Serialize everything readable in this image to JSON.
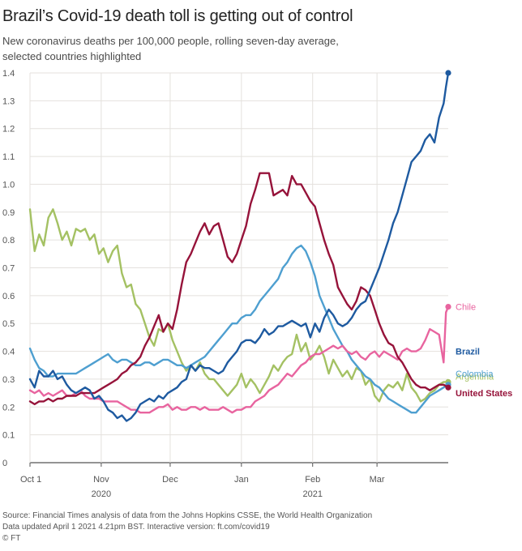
{
  "header": {
    "title": "Brazil’s Covid-19 death toll is getting out of control",
    "subtitle_lines": [
      "New coronavirus deaths per 100,000 people, rolling seven-day average,",
      "selected countries highlighted"
    ]
  },
  "footer": {
    "source": "Source: Financial Times analysis of data from the Johns Hopkins CSSE, the World Health Organization",
    "updated": "Data updated April 1 2021 4.21pm BST. Interactive version: ft.com/covid19",
    "credit": "© FT"
  },
  "chart_data": {
    "type": "line",
    "title": "Brazil’s Covid-19 death toll is getting out of control",
    "ylabel": "New coronavirus deaths per 100,000 people, rolling seven-day average",
    "xlabel": "",
    "ylim": [
      0,
      1.4
    ],
    "xlim": [
      0,
      182
    ],
    "yticks": [
      0,
      0.1,
      0.2,
      0.3,
      0.4,
      0.5,
      0.6,
      0.7,
      0.8,
      0.9,
      1.0,
      1.1,
      1.2,
      1.3,
      1.4
    ],
    "ytick_labels": [
      "0",
      "0.1",
      "0.2",
      "0.3",
      "0.4",
      "0.5",
      "0.6",
      "0.7",
      "0.8",
      "0.9",
      "1.0",
      "1.1",
      "1.2",
      "1.3",
      "1.4"
    ],
    "xticks": [
      {
        "day": 0,
        "label": "Oct 1"
      },
      {
        "day": 31,
        "label": "Nov",
        "year": "2020"
      },
      {
        "day": 61,
        "label": "Dec"
      },
      {
        "day": 92,
        "label": "Jan"
      },
      {
        "day": 123,
        "label": "Feb",
        "year": "2021"
      },
      {
        "day": 151,
        "label": "Mar"
      }
    ],
    "grid": true,
    "series": [
      {
        "name": "Argentina",
        "color": "#a4c163",
        "label_value": 0.29,
        "x": [
          0,
          2,
          4,
          6,
          8,
          10,
          12,
          14,
          16,
          18,
          20,
          22,
          24,
          26,
          28,
          30,
          32,
          34,
          36,
          38,
          40,
          42,
          44,
          46,
          48,
          50,
          52,
          54,
          56,
          58,
          60,
          62,
          64,
          66,
          68,
          70,
          72,
          74,
          76,
          78,
          80,
          82,
          84,
          86,
          88,
          90,
          92,
          94,
          96,
          98,
          100,
          102,
          104,
          106,
          108,
          110,
          112,
          114,
          116,
          118,
          120,
          122,
          124,
          126,
          128,
          130,
          132,
          134,
          136,
          138,
          140,
          142,
          144,
          146,
          148,
          150,
          152,
          154,
          156,
          158,
          160,
          162,
          164,
          166,
          168,
          170,
          172,
          174,
          176,
          178,
          180,
          182
        ],
        "values": [
          0.91,
          0.76,
          0.82,
          0.78,
          0.88,
          0.91,
          0.86,
          0.8,
          0.83,
          0.78,
          0.84,
          0.83,
          0.84,
          0.8,
          0.82,
          0.75,
          0.77,
          0.72,
          0.76,
          0.78,
          0.68,
          0.63,
          0.64,
          0.57,
          0.55,
          0.5,
          0.45,
          0.42,
          0.48,
          0.47,
          0.5,
          0.44,
          0.4,
          0.36,
          0.33,
          0.35,
          0.33,
          0.36,
          0.32,
          0.3,
          0.3,
          0.28,
          0.26,
          0.24,
          0.26,
          0.28,
          0.32,
          0.27,
          0.3,
          0.28,
          0.25,
          0.28,
          0.31,
          0.35,
          0.33,
          0.36,
          0.38,
          0.39,
          0.46,
          0.4,
          0.43,
          0.37,
          0.39,
          0.42,
          0.38,
          0.32,
          0.37,
          0.34,
          0.31,
          0.33,
          0.3,
          0.34,
          0.33,
          0.28,
          0.3,
          0.24,
          0.22,
          0.26,
          0.28,
          0.27,
          0.29,
          0.26,
          0.32,
          0.27,
          0.25,
          0.22,
          0.23,
          0.25,
          0.26,
          0.28,
          0.29,
          0.29
        ]
      },
      {
        "name": "Colombia",
        "color": "#4e9fd0",
        "label_value": 0.28,
        "x": [
          0,
          2,
          4,
          6,
          8,
          10,
          12,
          14,
          16,
          18,
          20,
          22,
          24,
          26,
          28,
          30,
          32,
          34,
          36,
          38,
          40,
          42,
          44,
          46,
          48,
          50,
          52,
          54,
          56,
          58,
          60,
          62,
          64,
          66,
          68,
          70,
          72,
          74,
          76,
          78,
          80,
          82,
          84,
          86,
          88,
          90,
          92,
          94,
          96,
          98,
          100,
          102,
          104,
          106,
          108,
          110,
          112,
          114,
          116,
          118,
          120,
          122,
          124,
          126,
          128,
          130,
          132,
          134,
          136,
          138,
          140,
          142,
          144,
          146,
          148,
          150,
          152,
          154,
          156,
          158,
          160,
          162,
          164,
          166,
          168,
          170,
          172,
          174,
          176,
          178,
          180,
          182
        ],
        "values": [
          0.41,
          0.37,
          0.34,
          0.33,
          0.31,
          0.31,
          0.32,
          0.32,
          0.32,
          0.32,
          0.32,
          0.33,
          0.34,
          0.35,
          0.36,
          0.37,
          0.38,
          0.39,
          0.37,
          0.36,
          0.37,
          0.37,
          0.36,
          0.35,
          0.35,
          0.36,
          0.36,
          0.35,
          0.36,
          0.37,
          0.37,
          0.36,
          0.35,
          0.35,
          0.34,
          0.35,
          0.36,
          0.37,
          0.38,
          0.4,
          0.42,
          0.44,
          0.46,
          0.48,
          0.5,
          0.5,
          0.52,
          0.53,
          0.53,
          0.55,
          0.58,
          0.6,
          0.62,
          0.64,
          0.66,
          0.7,
          0.72,
          0.75,
          0.77,
          0.78,
          0.76,
          0.72,
          0.67,
          0.6,
          0.56,
          0.52,
          0.48,
          0.45,
          0.42,
          0.4,
          0.37,
          0.35,
          0.33,
          0.31,
          0.3,
          0.28,
          0.27,
          0.25,
          0.23,
          0.22,
          0.21,
          0.2,
          0.19,
          0.18,
          0.18,
          0.2,
          0.22,
          0.24,
          0.25,
          0.26,
          0.27,
          0.28
        ]
      },
      {
        "name": "Chile",
        "color": "#e8649f",
        "label_value": 0.56,
        "x": [
          0,
          2,
          4,
          6,
          8,
          10,
          12,
          14,
          16,
          18,
          20,
          22,
          24,
          26,
          28,
          30,
          32,
          34,
          36,
          38,
          40,
          42,
          44,
          46,
          48,
          50,
          52,
          54,
          56,
          58,
          60,
          62,
          64,
          66,
          68,
          70,
          72,
          74,
          76,
          78,
          80,
          82,
          84,
          86,
          88,
          90,
          92,
          94,
          96,
          98,
          100,
          102,
          104,
          106,
          108,
          110,
          112,
          114,
          116,
          118,
          120,
          122,
          124,
          126,
          128,
          130,
          132,
          134,
          136,
          138,
          140,
          142,
          144,
          146,
          148,
          150,
          152,
          154,
          156,
          158,
          160,
          162,
          164,
          166,
          168,
          170,
          172,
          174,
          176,
          178,
          180,
          181,
          182
        ],
        "values": [
          0.26,
          0.25,
          0.26,
          0.24,
          0.25,
          0.24,
          0.25,
          0.26,
          0.24,
          0.24,
          0.25,
          0.26,
          0.24,
          0.23,
          0.23,
          0.23,
          0.22,
          0.22,
          0.22,
          0.22,
          0.21,
          0.2,
          0.19,
          0.19,
          0.18,
          0.18,
          0.18,
          0.19,
          0.2,
          0.2,
          0.21,
          0.19,
          0.2,
          0.19,
          0.19,
          0.2,
          0.2,
          0.19,
          0.2,
          0.19,
          0.19,
          0.19,
          0.2,
          0.19,
          0.18,
          0.19,
          0.19,
          0.2,
          0.2,
          0.22,
          0.23,
          0.24,
          0.26,
          0.27,
          0.28,
          0.3,
          0.32,
          0.31,
          0.33,
          0.35,
          0.36,
          0.38,
          0.39,
          0.39,
          0.4,
          0.41,
          0.42,
          0.41,
          0.42,
          0.4,
          0.39,
          0.4,
          0.38,
          0.37,
          0.39,
          0.4,
          0.38,
          0.4,
          0.39,
          0.38,
          0.37,
          0.4,
          0.41,
          0.4,
          0.4,
          0.41,
          0.44,
          0.48,
          0.47,
          0.46,
          0.36,
          0.54,
          0.56
        ]
      },
      {
        "name": "United States",
        "color": "#96133a",
        "label_value": 0.27,
        "x": [
          0,
          2,
          4,
          6,
          8,
          10,
          12,
          14,
          16,
          18,
          20,
          22,
          24,
          26,
          28,
          30,
          32,
          34,
          36,
          38,
          40,
          42,
          44,
          46,
          48,
          50,
          52,
          54,
          56,
          58,
          60,
          62,
          64,
          66,
          68,
          70,
          72,
          74,
          76,
          78,
          80,
          82,
          84,
          86,
          88,
          90,
          92,
          94,
          96,
          98,
          100,
          102,
          104,
          106,
          108,
          110,
          112,
          114,
          116,
          118,
          120,
          122,
          124,
          126,
          128,
          130,
          132,
          134,
          136,
          138,
          140,
          142,
          144,
          146,
          148,
          150,
          152,
          154,
          156,
          158,
          160,
          162,
          164,
          166,
          168,
          170,
          172,
          174,
          176,
          178,
          180,
          182
        ],
        "values": [
          0.22,
          0.21,
          0.22,
          0.22,
          0.23,
          0.22,
          0.23,
          0.23,
          0.24,
          0.24,
          0.24,
          0.25,
          0.25,
          0.25,
          0.25,
          0.26,
          0.27,
          0.28,
          0.29,
          0.3,
          0.32,
          0.33,
          0.35,
          0.36,
          0.38,
          0.42,
          0.45,
          0.49,
          0.53,
          0.47,
          0.5,
          0.48,
          0.55,
          0.64,
          0.72,
          0.75,
          0.79,
          0.83,
          0.86,
          0.82,
          0.85,
          0.86,
          0.8,
          0.74,
          0.72,
          0.75,
          0.8,
          0.85,
          0.93,
          0.98,
          1.04,
          1.04,
          1.04,
          0.96,
          0.97,
          0.98,
          0.96,
          1.03,
          1.0,
          1.0,
          0.97,
          0.94,
          0.92,
          0.86,
          0.8,
          0.75,
          0.71,
          0.63,
          0.6,
          0.57,
          0.55,
          0.58,
          0.63,
          0.62,
          0.6,
          0.55,
          0.5,
          0.46,
          0.43,
          0.42,
          0.38,
          0.36,
          0.33,
          0.3,
          0.28,
          0.27,
          0.27,
          0.26,
          0.27,
          0.28,
          0.28,
          0.27
        ]
      },
      {
        "name": "Brazil",
        "color": "#1e5aa0",
        "label_value": 1.4,
        "x": [
          0,
          2,
          4,
          6,
          8,
          10,
          12,
          14,
          16,
          18,
          20,
          22,
          24,
          26,
          28,
          30,
          32,
          34,
          36,
          38,
          40,
          42,
          44,
          46,
          48,
          50,
          52,
          54,
          56,
          58,
          60,
          62,
          64,
          66,
          68,
          70,
          72,
          74,
          76,
          78,
          80,
          82,
          84,
          86,
          88,
          90,
          92,
          94,
          96,
          98,
          100,
          102,
          104,
          106,
          108,
          110,
          112,
          114,
          116,
          118,
          120,
          122,
          124,
          126,
          128,
          130,
          132,
          134,
          136,
          138,
          140,
          142,
          144,
          146,
          148,
          150,
          152,
          154,
          156,
          158,
          160,
          162,
          164,
          166,
          168,
          170,
          172,
          174,
          176,
          178,
          180,
          181,
          182
        ],
        "values": [
          0.3,
          0.27,
          0.33,
          0.31,
          0.31,
          0.33,
          0.3,
          0.31,
          0.28,
          0.26,
          0.25,
          0.26,
          0.27,
          0.26,
          0.23,
          0.24,
          0.22,
          0.19,
          0.18,
          0.16,
          0.17,
          0.15,
          0.16,
          0.18,
          0.21,
          0.22,
          0.23,
          0.22,
          0.24,
          0.23,
          0.25,
          0.26,
          0.27,
          0.29,
          0.3,
          0.35,
          0.33,
          0.35,
          0.34,
          0.34,
          0.33,
          0.32,
          0.33,
          0.36,
          0.38,
          0.4,
          0.43,
          0.44,
          0.44,
          0.43,
          0.45,
          0.48,
          0.46,
          0.47,
          0.49,
          0.49,
          0.5,
          0.51,
          0.5,
          0.49,
          0.5,
          0.45,
          0.5,
          0.47,
          0.52,
          0.55,
          0.53,
          0.5,
          0.49,
          0.5,
          0.52,
          0.55,
          0.57,
          0.58,
          0.62,
          0.66,
          0.7,
          0.75,
          0.8,
          0.86,
          0.9,
          0.96,
          1.02,
          1.08,
          1.1,
          1.12,
          1.16,
          1.18,
          1.15,
          1.24,
          1.29,
          1.35,
          1.4
        ]
      }
    ]
  }
}
